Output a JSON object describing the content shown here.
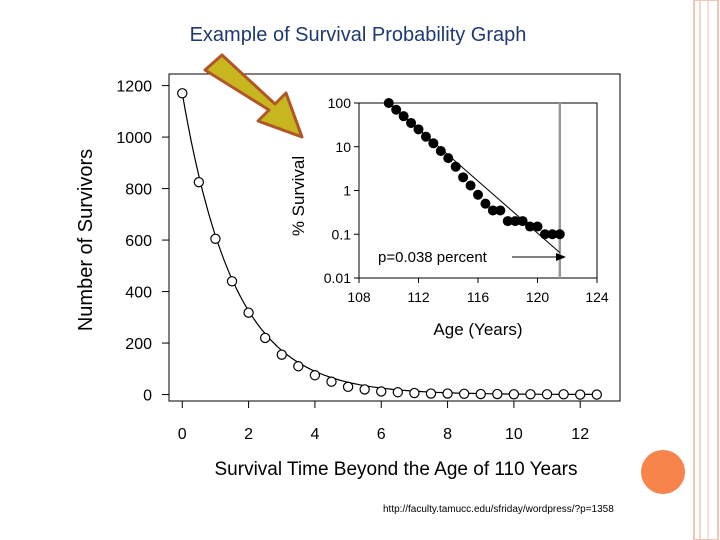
{
  "slide": {
    "title": "Example of Survival Probability Graph",
    "source_url": "http://faculty.tamucc.edu/sfriday/wordpress/?p=1358"
  },
  "colors": {
    "title": "#1f3a6e",
    "border": "#f3c6b4",
    "accent_dot": "#f7844a",
    "arrow_fill": "#c8b61e",
    "arrow_stroke": "#b0562a"
  },
  "chart_data": [
    {
      "type": "scatter",
      "title": "",
      "xlabel": "Survival Time Beyond the Age of 110 Years",
      "ylabel": "Number of Survivors",
      "xlim": [
        -0.4,
        13.2
      ],
      "ylim": [
        -25,
        1245
      ],
      "xticks": [
        0,
        2,
        4,
        6,
        8,
        10,
        12
      ],
      "yticks": [
        0,
        200,
        400,
        600,
        800,
        1000,
        1200
      ],
      "grid": false,
      "markers": "open circles",
      "fit_line": "exponential decay",
      "x": [
        0,
        0.5,
        1,
        1.5,
        2,
        2.5,
        3,
        3.5,
        4,
        4.5,
        5,
        5.5,
        6,
        6.5,
        7,
        7.5,
        8,
        8.5,
        9,
        9.5,
        10,
        10.5,
        11,
        11.5,
        12,
        12.5
      ],
      "y": [
        1170,
        825,
        605,
        440,
        318,
        220,
        155,
        110,
        75,
        50,
        30,
        20,
        12,
        9,
        6,
        4,
        4,
        3,
        2,
        2,
        1,
        1,
        1,
        1,
        0,
        0
      ]
    },
    {
      "type": "scatter",
      "title": "",
      "xlabel": "Age (Years)",
      "ylabel": "% Survival",
      "xlim": [
        108,
        124
      ],
      "ylim": [
        0.01,
        100
      ],
      "yscale": "log",
      "xticks": [
        108,
        112,
        116,
        120,
        124
      ],
      "yticks": [
        "100",
        "10",
        "1",
        "0.1",
        "0.01"
      ],
      "markers": "filled circles",
      "fit_line": "straight line on log scale",
      "vertical_line_x": 121.5,
      "annotation": "p=0.038 percent",
      "x": [
        110,
        110.5,
        111,
        111.5,
        112,
        112.5,
        113,
        113.5,
        114,
        114.5,
        115,
        115.5,
        116,
        116.5,
        117,
        117.5,
        118,
        118.5,
        119,
        119.5,
        120,
        120.5,
        121,
        121.5
      ],
      "y": [
        100,
        70,
        50,
        35,
        25,
        17,
        12,
        8,
        5.5,
        3.5,
        2,
        1.3,
        0.8,
        0.5,
        0.35,
        0.35,
        0.2,
        0.2,
        0.2,
        0.15,
        0.15,
        0.1,
        0.1,
        0.1
      ]
    }
  ]
}
